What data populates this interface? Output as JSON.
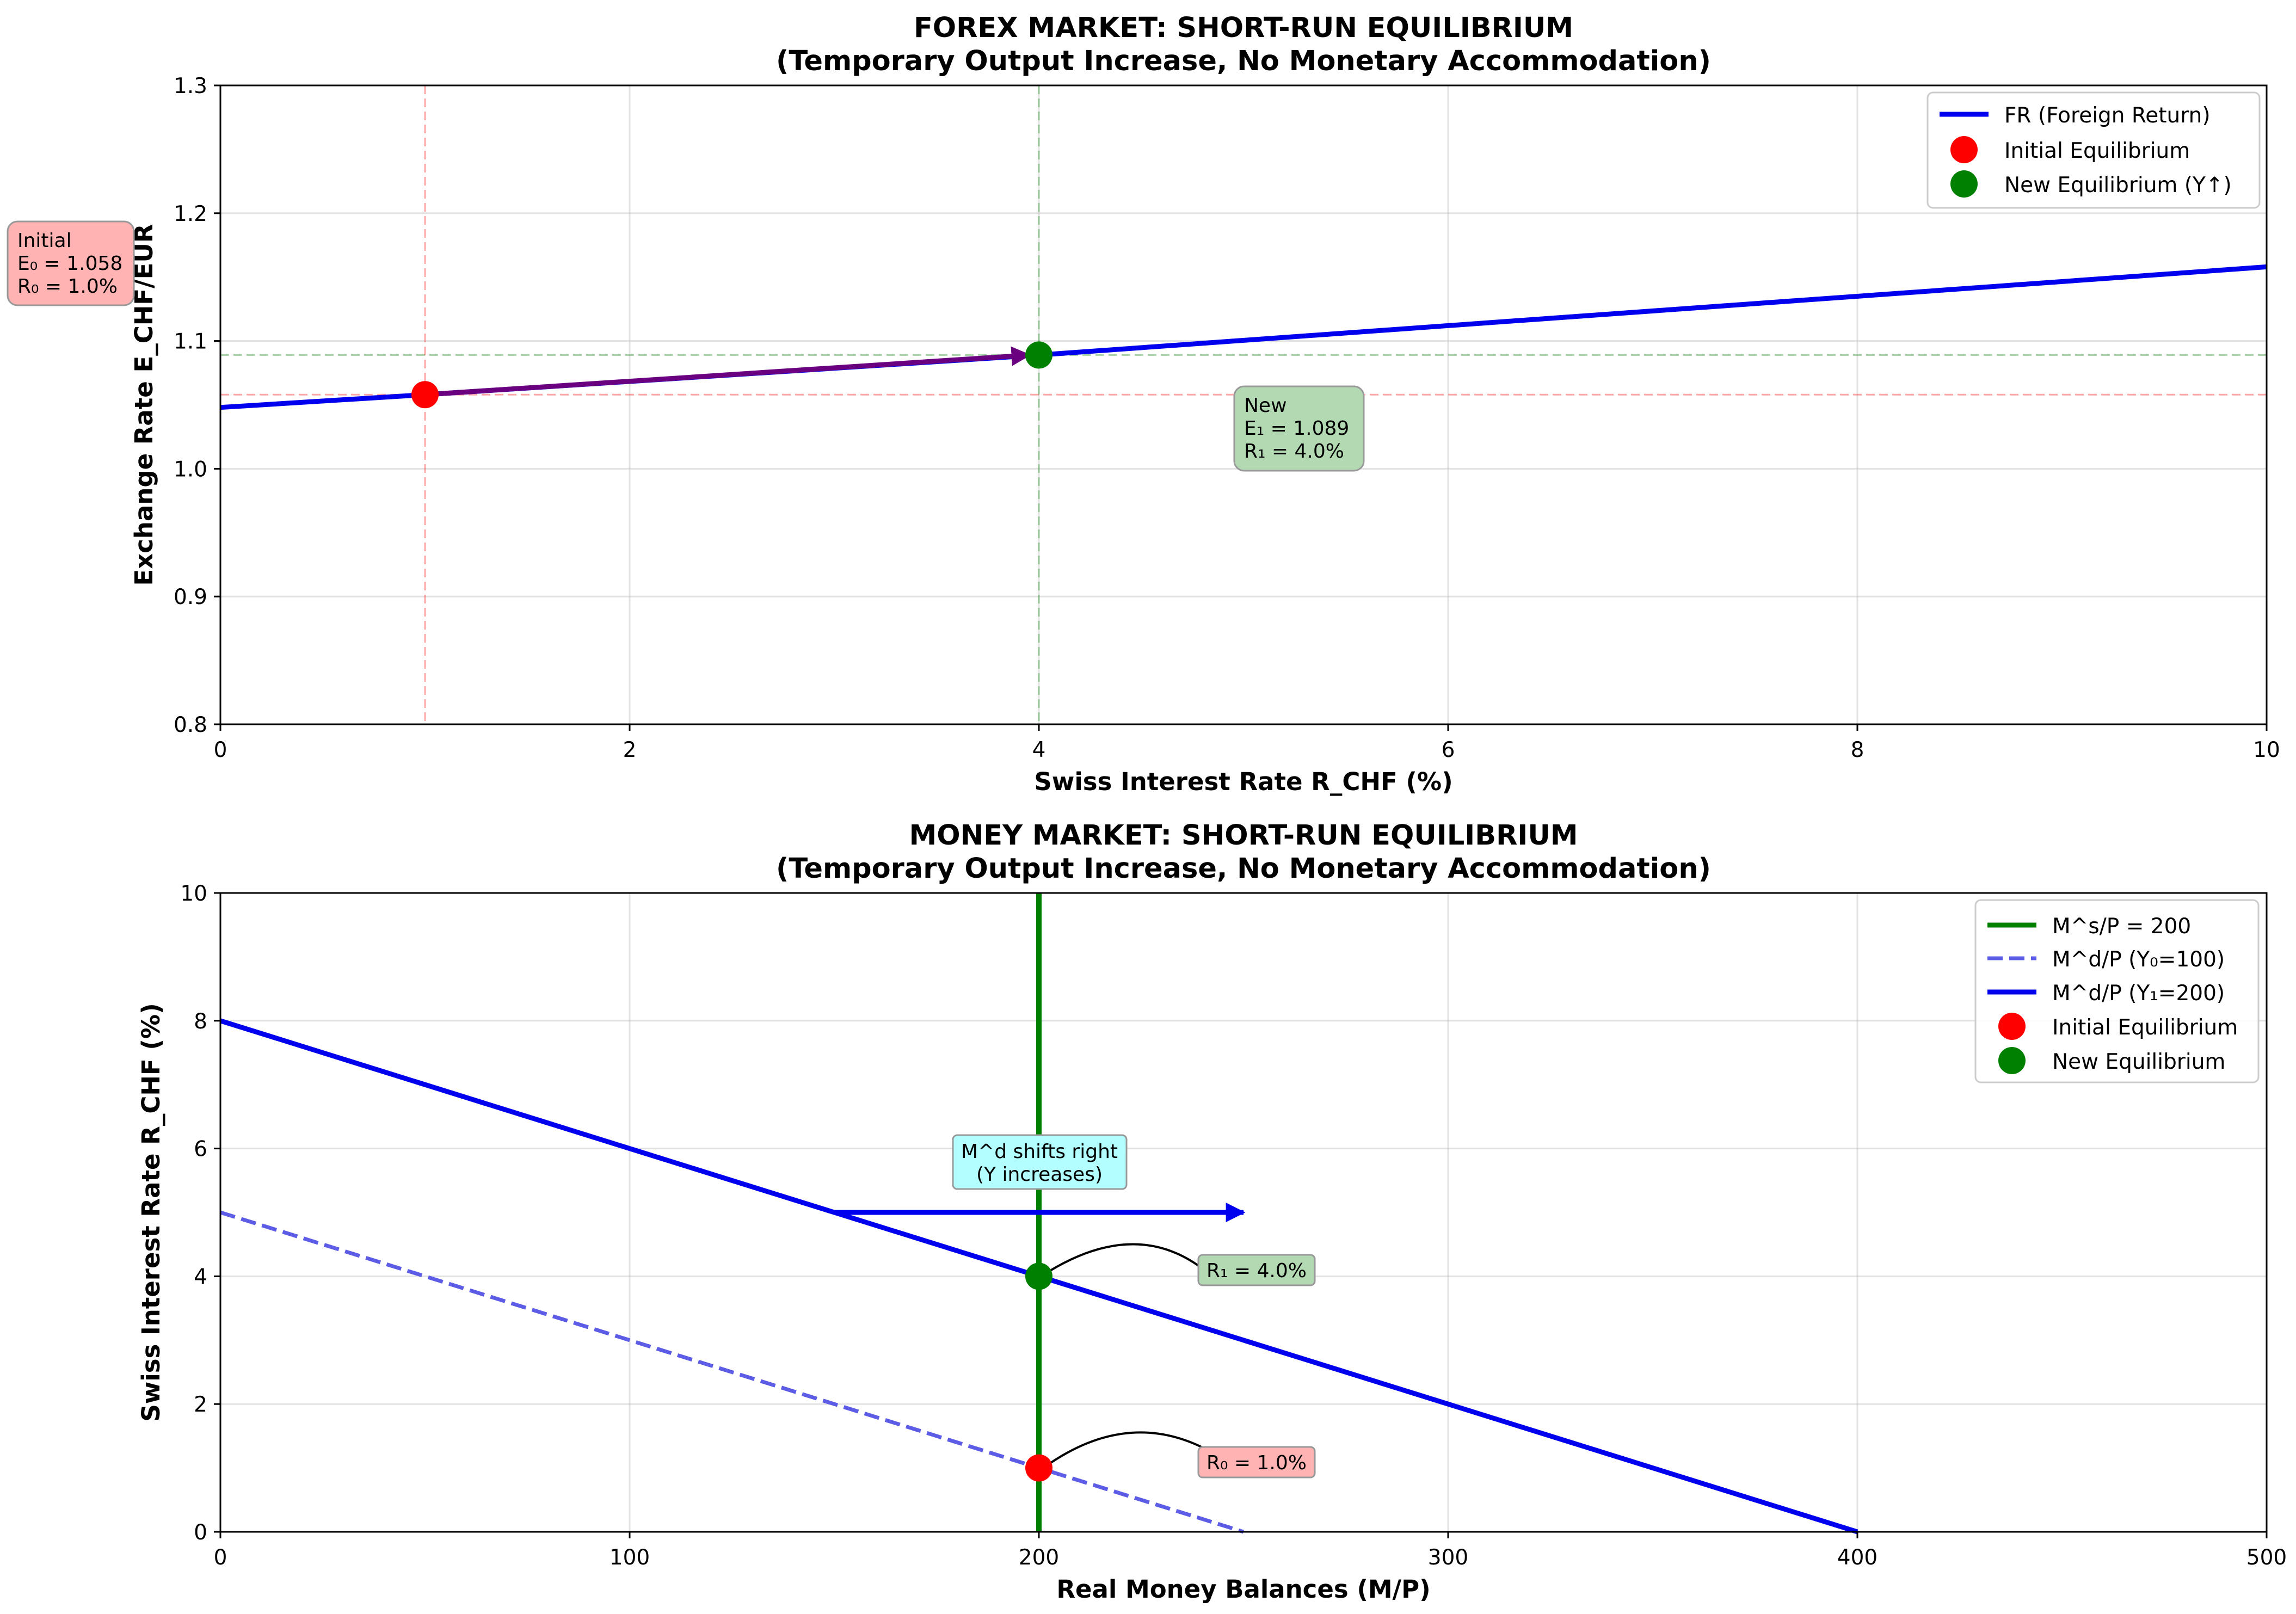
{
  "chart_data": [
    {
      "type": "line",
      "title": "FOREX MARKET: SHORT-RUN EQUILIBRIUM",
      "subtitle": "(Temporary Output Increase, No Monetary Accommodation)",
      "xlabel": "Swiss Interest Rate R_CHF (%)",
      "ylabel": "Exchange Rate E_CHF/EUR",
      "xlim": [
        0,
        10
      ],
      "ylim": [
        0.8,
        1.3
      ],
      "xticks": [
        0,
        2,
        4,
        6,
        8,
        10
      ],
      "xtick_labels": [
        "0",
        "2",
        "4",
        "6",
        "8",
        "10"
      ],
      "yticks": [
        0.8,
        0.9,
        1.0,
        1.1,
        1.2,
        1.3
      ],
      "ytick_labels": [
        "0.8",
        "0.9",
        "1.0",
        "1.1",
        "1.2",
        "1.3"
      ],
      "grid": true,
      "legend_position": "upper-right",
      "series": [
        {
          "name": "FR (Foreign Return)",
          "style": "solid",
          "color": "#0000ee",
          "x": [
            0,
            1,
            4,
            10
          ],
          "y": [
            1.048,
            1.058,
            1.089,
            1.158
          ]
        }
      ],
      "points": [
        {
          "name": "Initial Equilibrium",
          "x": 1.0,
          "y": 1.058,
          "color": "#ff0000"
        },
        {
          "name": "New Equilibrium (Y↑)",
          "x": 4.0,
          "y": 1.089,
          "color": "#008000"
        }
      ],
      "arrow": {
        "from": [
          1.0,
          1.058
        ],
        "to": [
          4.0,
          1.089
        ],
        "color": "#6a0080"
      },
      "annotations": [
        {
          "lines": [
            "Initial",
            "E₀ = 1.058",
            "R₀ = 1.0%"
          ],
          "bg": "#ffb3b3"
        },
        {
          "lines": [
            "New",
            "E₁ = 1.089",
            "R₁ = 4.0%"
          ],
          "bg": "#b3d9b3"
        }
      ]
    },
    {
      "type": "line",
      "title": "MONEY MARKET: SHORT-RUN EQUILIBRIUM",
      "subtitle": "(Temporary Output Increase, No Monetary Accommodation)",
      "xlabel": "Real Money Balances (M/P)",
      "ylabel": "Swiss Interest Rate R_CHF (%)",
      "xlim": [
        0,
        500
      ],
      "ylim": [
        0,
        10
      ],
      "xticks": [
        0,
        100,
        200,
        300,
        400,
        500
      ],
      "xtick_labels": [
        "0",
        "100",
        "200",
        "300",
        "400",
        "500"
      ],
      "yticks": [
        0,
        2,
        4,
        6,
        8,
        10
      ],
      "ytick_labels": [
        "0",
        "2",
        "4",
        "6",
        "8",
        "10"
      ],
      "grid": true,
      "legend_position": "upper-right",
      "series": [
        {
          "name": "M^s/P = 200",
          "style": "solid",
          "color": "#008000",
          "x": [
            200,
            200
          ],
          "y": [
            0,
            10
          ]
        },
        {
          "name": "M^d/P (Y₀=100)",
          "style": "dashed",
          "color": "#5c5ce6",
          "x": [
            0,
            250
          ],
          "y": [
            5,
            0
          ]
        },
        {
          "name": "M^d/P (Y₁=200)",
          "style": "solid",
          "color": "#0000ee",
          "x": [
            0,
            400
          ],
          "y": [
            8,
            0
          ]
        }
      ],
      "points": [
        {
          "name": "Initial Equilibrium",
          "x": 200,
          "y": 1.0,
          "color": "#ff0000"
        },
        {
          "name": "New Equilibrium",
          "x": 200,
          "y": 4.0,
          "color": "#008000"
        }
      ],
      "shift_arrow": {
        "from": [
          150,
          5
        ],
        "to": [
          250,
          5
        ],
        "color": "#0000ee"
      },
      "annotations": [
        {
          "lines": [
            "M^d shifts right",
            "(Y increases)"
          ],
          "bg": "#b3ffff"
        },
        {
          "lines": [
            "R₁ = 4.0%"
          ],
          "bg": "#b3d9b3"
        },
        {
          "lines": [
            "R₀ = 1.0%"
          ],
          "bg": "#ffb3b3"
        }
      ]
    }
  ]
}
